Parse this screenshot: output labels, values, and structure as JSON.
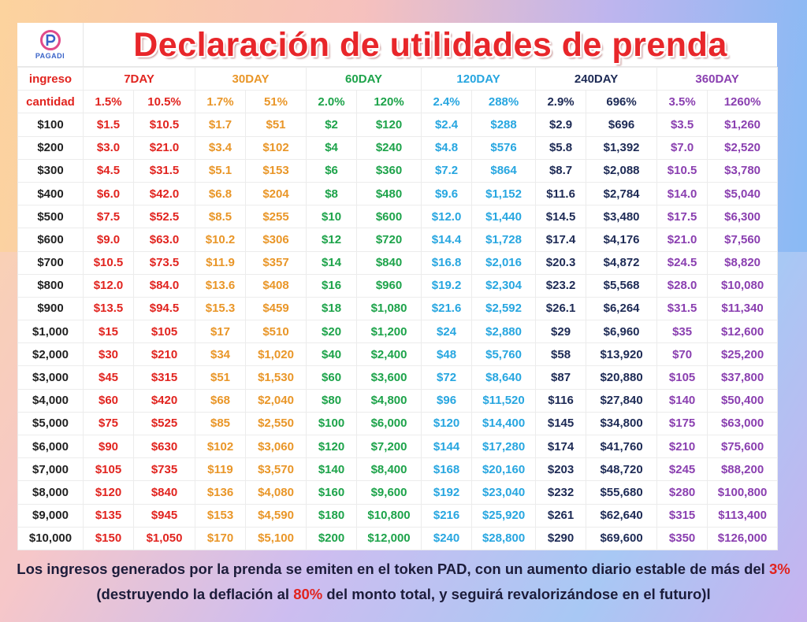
{
  "header": {
    "logo_text": "PAGADI",
    "title": "Declaración de utilidades de prenda"
  },
  "table": {
    "label_row1": "ingreso",
    "label_row2": "cantidad",
    "periods": [
      {
        "label": "7DAY",
        "rate": "1.5%",
        "total": "10.5%",
        "color": "#e1241f"
      },
      {
        "label": "30DAY",
        "rate": "1.7%",
        "total": "51%",
        "color": "#e99628"
      },
      {
        "label": "60DAY",
        "rate": "2.0%",
        "total": "120%",
        "color": "#1da34a"
      },
      {
        "label": "120DAY",
        "rate": "2.4%",
        "total": "288%",
        "color": "#27a6e0"
      },
      {
        "label": "240DAY",
        "rate": "2.9%",
        "total": "696%",
        "color": "#1d2a55"
      },
      {
        "label": "360DAY",
        "rate": "3.5%",
        "total": "1260%",
        "color": "#8a3fb0"
      }
    ],
    "rows": [
      [
        "$100",
        "$1.5",
        "$10.5",
        "$1.7",
        "$51",
        "$2",
        "$120",
        "$2.4",
        "$288",
        "$2.9",
        "$696",
        "$3.5",
        "$1,260"
      ],
      [
        "$200",
        "$3.0",
        "$21.0",
        "$3.4",
        "$102",
        "$4",
        "$240",
        "$4.8",
        "$576",
        "$5.8",
        "$1,392",
        "$7.0",
        "$2,520"
      ],
      [
        "$300",
        "$4.5",
        "$31.5",
        "$5.1",
        "$153",
        "$6",
        "$360",
        "$7.2",
        "$864",
        "$8.7",
        "$2,088",
        "$10.5",
        "$3,780"
      ],
      [
        "$400",
        "$6.0",
        "$42.0",
        "$6.8",
        "$204",
        "$8",
        "$480",
        "$9.6",
        "$1,152",
        "$11.6",
        "$2,784",
        "$14.0",
        "$5,040"
      ],
      [
        "$500",
        "$7.5",
        "$52.5",
        "$8.5",
        "$255",
        "$10",
        "$600",
        "$12.0",
        "$1,440",
        "$14.5",
        "$3,480",
        "$17.5",
        "$6,300"
      ],
      [
        "$600",
        "$9.0",
        "$63.0",
        "$10.2",
        "$306",
        "$12",
        "$720",
        "$14.4",
        "$1,728",
        "$17.4",
        "$4,176",
        "$21.0",
        "$7,560"
      ],
      [
        "$700",
        "$10.5",
        "$73.5",
        "$11.9",
        "$357",
        "$14",
        "$840",
        "$16.8",
        "$2,016",
        "$20.3",
        "$4,872",
        "$24.5",
        "$8,820"
      ],
      [
        "$800",
        "$12.0",
        "$84.0",
        "$13.6",
        "$408",
        "$16",
        "$960",
        "$19.2",
        "$2,304",
        "$23.2",
        "$5,568",
        "$28.0",
        "$10,080"
      ],
      [
        "$900",
        "$13.5",
        "$94.5",
        "$15.3",
        "$459",
        "$18",
        "$1,080",
        "$21.6",
        "$2,592",
        "$26.1",
        "$6,264",
        "$31.5",
        "$11,340"
      ],
      [
        "$1,000",
        "$15",
        "$105",
        "$17",
        "$510",
        "$20",
        "$1,200",
        "$24",
        "$2,880",
        "$29",
        "$6,960",
        "$35",
        "$12,600"
      ],
      [
        "$2,000",
        "$30",
        "$210",
        "$34",
        "$1,020",
        "$40",
        "$2,400",
        "$48",
        "$5,760",
        "$58",
        "$13,920",
        "$70",
        "$25,200"
      ],
      [
        "$3,000",
        "$45",
        "$315",
        "$51",
        "$1,530",
        "$60",
        "$3,600",
        "$72",
        "$8,640",
        "$87",
        "$20,880",
        "$105",
        "$37,800"
      ],
      [
        "$4,000",
        "$60",
        "$420",
        "$68",
        "$2,040",
        "$80",
        "$4,800",
        "$96",
        "$11,520",
        "$116",
        "$27,840",
        "$140",
        "$50,400"
      ],
      [
        "$5,000",
        "$75",
        "$525",
        "$85",
        "$2,550",
        "$100",
        "$6,000",
        "$120",
        "$14,400",
        "$145",
        "$34,800",
        "$175",
        "$63,000"
      ],
      [
        "$6,000",
        "$90",
        "$630",
        "$102",
        "$3,060",
        "$120",
        "$7,200",
        "$144",
        "$17,280",
        "$174",
        "$41,760",
        "$210",
        "$75,600"
      ],
      [
        "$7,000",
        "$105",
        "$735",
        "$119",
        "$3,570",
        "$140",
        "$8,400",
        "$168",
        "$20,160",
        "$203",
        "$48,720",
        "$245",
        "$88,200"
      ],
      [
        "$8,000",
        "$120",
        "$840",
        "$136",
        "$4,080",
        "$160",
        "$9,600",
        "$192",
        "$23,040",
        "$232",
        "$55,680",
        "$280",
        "$100,800"
      ],
      [
        "$9,000",
        "$135",
        "$945",
        "$153",
        "$4,590",
        "$180",
        "$10,800",
        "$216",
        "$25,920",
        "$261",
        "$62,640",
        "$315",
        "$113,400"
      ],
      [
        "$10,000",
        "$150",
        "$1,050",
        "$170",
        "$5,100",
        "$200",
        "$12,000",
        "$240",
        "$28,800",
        "$290",
        "$69,600",
        "$350",
        "$126,000"
      ]
    ]
  },
  "footer": {
    "line1_a": "Los ingresos generados por la prenda se emiten en el token PAD, con un aumento diario estable de más del ",
    "line1_hl": "3%",
    "line2_a": "(destruyendo la deflación al ",
    "line2_hl": "80%",
    "line2_b": " del monto total, y seguirá revalorizándose en el futuro)l"
  }
}
